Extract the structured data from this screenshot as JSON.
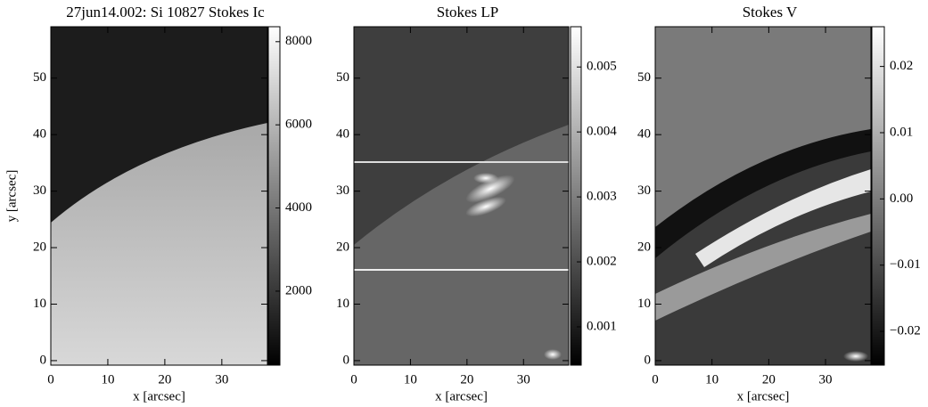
{
  "chart_data": [
    {
      "type": "image",
      "title": "27jun14.002: Si 10827 Stokes Ic",
      "xlabel": "x [arcsec]",
      "ylabel": "y [arcsec]",
      "xlim": [
        0,
        38
      ],
      "ylim": [
        -0.8,
        59.1
      ],
      "xticks": [
        0,
        10,
        20,
        30
      ],
      "yticks": [
        0,
        10,
        20,
        30,
        40,
        50
      ],
      "clim": [
        220,
        8360
      ],
      "cticks": [
        2000,
        4000,
        6000,
        8000
      ]
    },
    {
      "type": "image",
      "title": "Stokes LP",
      "xlabel": "x [arcsec]",
      "xlim": [
        0,
        38
      ],
      "ylim": [
        -0.8,
        59.1
      ],
      "xticks": [
        0,
        10,
        20,
        30
      ],
      "yticks": [
        0,
        10,
        20,
        30,
        40,
        50
      ],
      "clim": [
        0.00041,
        0.00562
      ],
      "cticks": [
        0.001,
        0.002,
        0.003,
        0.004,
        0.005
      ]
    },
    {
      "type": "image",
      "title": "Stokes V",
      "xlabel": "x [arcsec]",
      "xlim": [
        0,
        38
      ],
      "ylim": [
        -0.8,
        59.1
      ],
      "xticks": [
        0,
        10,
        20,
        30
      ],
      "yticks": [
        0,
        10,
        20,
        30,
        40,
        50
      ],
      "clim": [
        -0.0251,
        0.026
      ],
      "cticks": [
        {
          "value": -0.02,
          "label": "−0.02"
        },
        {
          "value": -0.01,
          "label": "−0.01"
        },
        {
          "value": 0,
          "label": "0.00"
        },
        0.01,
        0.02
      ]
    }
  ]
}
